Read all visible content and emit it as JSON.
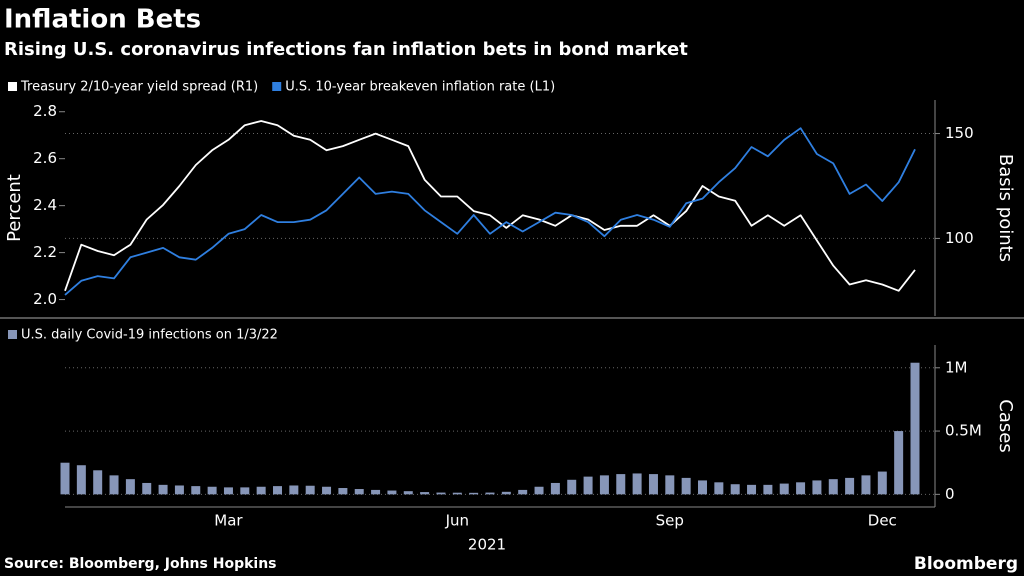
{
  "title": "Inflation Bets",
  "subtitle": "Rising U.S. coronavirus infections fan inflation bets in bond market",
  "source": "Source: Bloomberg, Johns Hopkins",
  "brand": "Bloomberg",
  "chart_data": [
    {
      "type": "line",
      "y_label": "Percent",
      "y2_label": "Basis points",
      "ylim": [
        1.93,
        2.85
      ],
      "yticks": [
        {
          "value": 2,
          "label": "2.0"
        },
        2.2,
        2.4,
        2.6,
        2.8
      ],
      "y2lim": [
        63,
        166
      ],
      "y2ticks": [
        100,
        150
      ],
      "grid": true,
      "series": [
        {
          "name": "Treasury 2/10-year yield spread (R1)",
          "color": "#ffffff",
          "axis": "y2",
          "values": [
            75,
            97,
            94,
            92,
            97,
            109,
            116,
            125,
            135,
            142,
            147,
            154,
            156,
            154,
            149,
            147,
            142,
            144,
            147,
            150,
            147,
            144,
            128,
            120,
            120,
            113,
            111,
            105,
            111,
            109,
            106,
            111,
            109,
            104,
            106,
            106,
            111,
            106,
            113,
            125,
            120,
            118,
            106,
            111,
            106,
            111,
            99,
            87,
            78,
            80,
            78,
            75,
            85
          ]
        },
        {
          "name": "U.S. 10-year breakeven inflation rate (L1)",
          "color": "#2f7fe0",
          "values": [
            2.02,
            2.08,
            2.1,
            2.09,
            2.18,
            2.2,
            2.22,
            2.18,
            2.17,
            2.22,
            2.28,
            2.3,
            2.36,
            2.33,
            2.33,
            2.34,
            2.38,
            2.45,
            2.52,
            2.45,
            2.46,
            2.45,
            2.38,
            2.33,
            2.28,
            2.36,
            2.28,
            2.33,
            2.29,
            2.33,
            2.37,
            2.36,
            2.33,
            2.27,
            2.34,
            2.36,
            2.34,
            2.31,
            2.41,
            2.43,
            2.5,
            2.56,
            2.65,
            2.61,
            2.68,
            2.73,
            2.62,
            2.58,
            2.45,
            2.49,
            2.42,
            2.5,
            2.64
          ]
        }
      ]
    },
    {
      "type": "bar",
      "y_label": "Cases",
      "x_label": "2021",
      "categories": [
        null,
        null,
        null,
        null,
        null,
        null,
        null,
        null,
        null,
        null,
        "Mar",
        null,
        null,
        null,
        null,
        null,
        null,
        null,
        null,
        null,
        null,
        null,
        null,
        null,
        "Jun",
        null,
        null,
        null,
        null,
        null,
        null,
        null,
        null,
        null,
        null,
        null,
        null,
        "Sep",
        null,
        null,
        null,
        null,
        null,
        null,
        null,
        null,
        null,
        null,
        null,
        null,
        "Dec",
        null,
        null
      ],
      "ylim": [
        -100000,
        1180000
      ],
      "yticks": [
        0,
        {
          "value": 500000,
          "label": "0.5M"
        },
        {
          "value": 1000000,
          "label": "1M"
        }
      ],
      "grid": true,
      "series": [
        {
          "name": "U.S. daily Covid-19 infections on 1/3/22",
          "color": "#8796b8",
          "values": [
            250000,
            230000,
            190000,
            150000,
            120000,
            90000,
            75000,
            70000,
            65000,
            60000,
            55000,
            55000,
            60000,
            65000,
            70000,
            68000,
            60000,
            50000,
            42000,
            35000,
            30000,
            25000,
            18000,
            14000,
            13000,
            12000,
            14000,
            20000,
            35000,
            60000,
            90000,
            115000,
            140000,
            150000,
            160000,
            165000,
            160000,
            150000,
            130000,
            110000,
            95000,
            80000,
            75000,
            75000,
            85000,
            95000,
            110000,
            120000,
            130000,
            150000,
            180000,
            500000,
            1040000
          ]
        }
      ]
    }
  ]
}
